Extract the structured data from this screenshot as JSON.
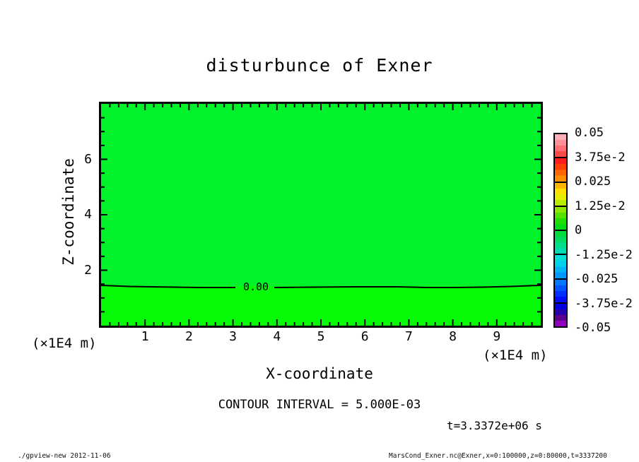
{
  "title": "disturbunce of Exner",
  "axes": {
    "x": {
      "label": "X-coordinate",
      "unit": "(×1E4 m)",
      "ticks": [
        "1",
        "2",
        "3",
        "4",
        "5",
        "6",
        "7",
        "8",
        "9"
      ]
    },
    "y": {
      "label": "Z-coordinate",
      "unit": "(×1E4 m)",
      "ticks": [
        "2",
        "4",
        "6"
      ]
    }
  },
  "contour": {
    "label": "0.00",
    "interval_text": "CONTOUR INTERVAL = 5.000E-03"
  },
  "time_text": "t=3.3372e+06 s",
  "footer": {
    "left": "./gpview-new  2012-11-06",
    "right": "MarsCond_Exner.nc@Exner,x=0:100000,z=0:80000,t=3337200"
  },
  "colors": {
    "field_upper": "#00F32A",
    "field_lower": "#06F906",
    "axis": "#000000"
  },
  "colorbar": {
    "labels": [
      "0.05",
      "3.75e-2",
      "0.025",
      "1.25e-2",
      "0",
      "-1.25e-2",
      "-0.025",
      "-3.75e-2",
      "-0.05"
    ],
    "segments": [
      [
        "#FFAEB8",
        "#FF9096",
        "#FF6E70",
        "#FF4A4A"
      ],
      [
        "#FF1C1C",
        "#FF4000",
        "#FF6800",
        "#FF8E00"
      ],
      [
        "#FFB400",
        "#FFE000",
        "#E8EE00",
        "#B8EC00"
      ],
      [
        "#8CE800",
        "#54E200",
        "#22DE00",
        "#02DC12"
      ],
      [
        "#00DC3A",
        "#00DC62",
        "#00DC8A",
        "#00DCB2"
      ],
      [
        "#00E0D6",
        "#00D2EE",
        "#00B4F8",
        "#0096FF"
      ],
      [
        "#0078FF",
        "#0054FF",
        "#0030FF",
        "#000CFF"
      ],
      [
        "#0000DE",
        "#2600AC",
        "#5C008E",
        "#9400BE"
      ]
    ]
  },
  "chart_data": {
    "type": "heatmap",
    "title": "disturbunce of Exner",
    "xlabel": "X-coordinate (×1E4 m)",
    "ylabel": "Z-coordinate (×1E4 m)",
    "xlim": [
      0,
      10
    ],
    "ylim": [
      0,
      8
    ],
    "x_ticks": [
      1,
      2,
      3,
      4,
      5,
      6,
      7,
      8,
      9
    ],
    "y_ticks": [
      2,
      4,
      6
    ],
    "contour_interval": 0.005,
    "colorbar_levels": [
      0.05,
      0.0375,
      0.025,
      0.0125,
      0,
      -0.0125,
      -0.025,
      -0.0375,
      -0.05
    ],
    "contour_lines": [
      {
        "level": 0.0,
        "label": "0.00",
        "approx_z_position_1e4m": 1.45,
        "shape": "nearly horizontal line across full x range"
      }
    ],
    "field_summary": "Exner disturbance near zero everywhere; slightly positive band above z≈1.45e4 m and slightly negative band below, both rendered in bright green tones",
    "time": "t=3.3372e+06 s"
  }
}
